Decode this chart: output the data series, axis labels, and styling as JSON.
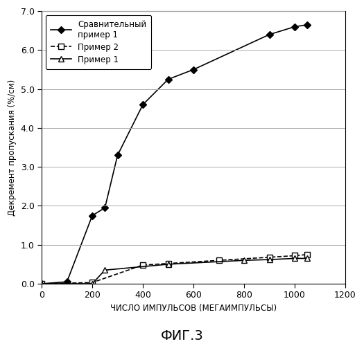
{
  "comp_ex1_x": [
    0,
    100,
    200,
    250,
    300,
    400,
    500,
    600,
    900,
    1000,
    1050
  ],
  "comp_ex1_y": [
    0.0,
    0.05,
    1.75,
    1.95,
    3.3,
    4.6,
    5.25,
    5.5,
    6.4,
    6.6,
    6.65
  ],
  "ex2_x": [
    0,
    200,
    400,
    500,
    700,
    900,
    1000,
    1050
  ],
  "ex2_y": [
    0.0,
    0.03,
    0.48,
    0.52,
    0.6,
    0.68,
    0.72,
    0.75
  ],
  "ex1_x": [
    0,
    200,
    250,
    500,
    800,
    900,
    1000,
    1050
  ],
  "ex1_y": [
    0.0,
    0.0,
    0.35,
    0.5,
    0.6,
    0.62,
    0.65,
    0.65
  ],
  "xlabel": "ЧИСЛО ИМПУЛЬСОВ (МЕГАИМПУЛЬСЫ)",
  "ylabel": "Декремент пропускания (%/см)",
  "label_comp_ex1": "Сравнительный\nпример 1",
  "label_ex2": "Пример 2",
  "label_ex1": "Пример 1",
  "title": "ФИГ.3",
  "xlim": [
    0,
    1200
  ],
  "ylim": [
    0,
    7.0
  ],
  "xticks": [
    0,
    200,
    400,
    600,
    800,
    1000,
    1200
  ],
  "yticks": [
    0.0,
    1.0,
    2.0,
    3.0,
    4.0,
    5.0,
    6.0,
    7.0
  ],
  "bg_color": "#ffffff"
}
